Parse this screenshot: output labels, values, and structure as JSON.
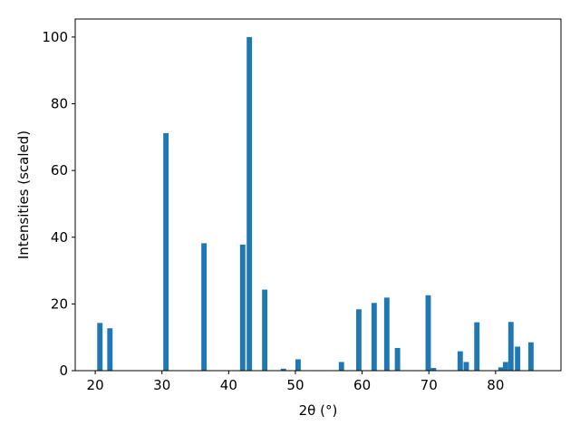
{
  "chart_data": {
    "type": "bar",
    "x_label": "2θ (°)",
    "y_label": "Intensities (scaled)",
    "x": [
      20.7,
      22.2,
      30.6,
      36.3,
      42.1,
      43.1,
      45.4,
      48.2,
      50.4,
      56.9,
      59.5,
      61.8,
      63.7,
      65.3,
      69.9,
      70.7,
      74.7,
      75.6,
      77.2,
      80.8,
      81.5,
      82.3,
      83.3,
      85.3
    ],
    "values": [
      14.3,
      12.7,
      71.2,
      38.2,
      37.8,
      100,
      24.3,
      0.6,
      3.4,
      2.6,
      18.4,
      20.3,
      21.9,
      6.8,
      22.6,
      0.8,
      5.8,
      2.6,
      14.5,
      1.0,
      2.6,
      14.6,
      7.2,
      8.5
    ],
    "color": "#1f77b4",
    "xlim": [
      17.0,
      89.8
    ],
    "xticks": [
      20,
      30,
      40,
      50,
      60,
      70,
      80
    ],
    "ylim": [
      0,
      105.4
    ],
    "yticks": [
      0,
      20,
      40,
      60,
      80,
      100
    ]
  }
}
